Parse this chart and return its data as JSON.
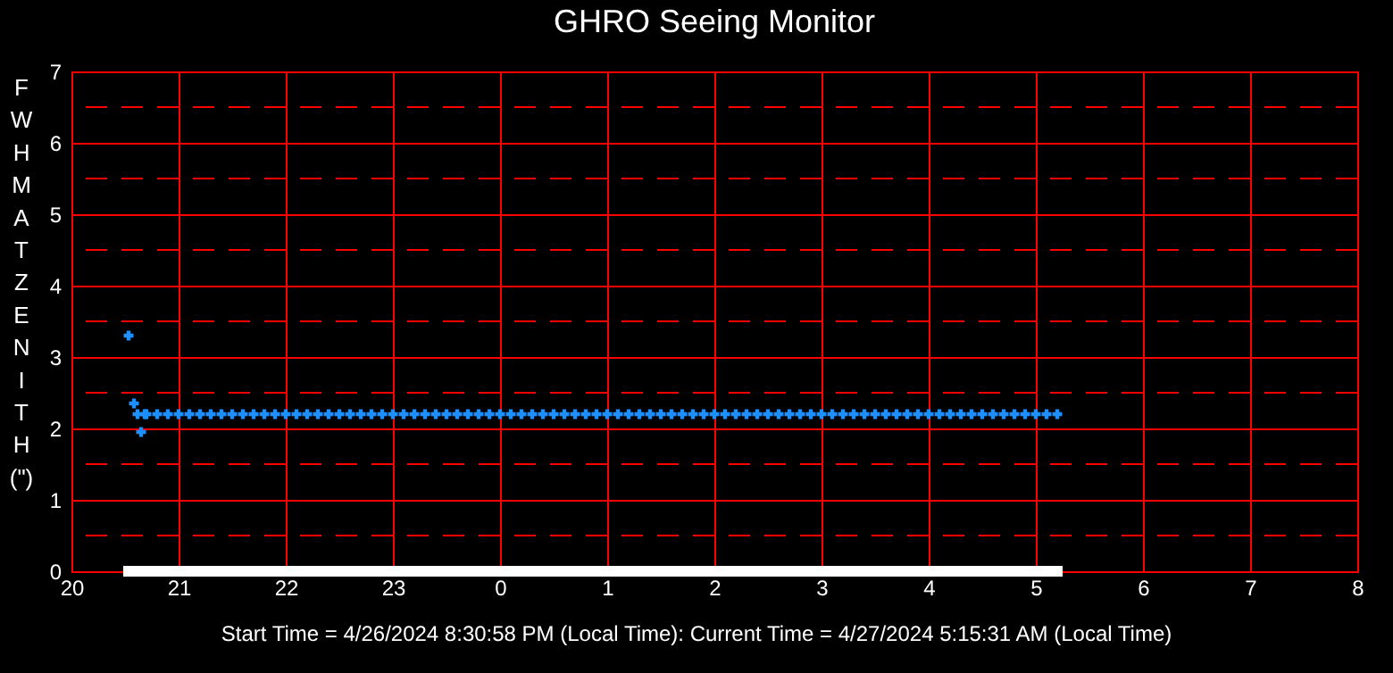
{
  "chart_data": {
    "type": "scatter",
    "title": "GHRO Seeing Monitor",
    "ylabel": "FWHM AT ZENITH (\")",
    "annotations": [
      "Start Time = 4/26/2024 8:30:58 PM (Local Time): Current Time = 4/27/2024 5:15:31 AM (Local Time)"
    ],
    "xlim": [
      "2024-04-26T20:00",
      "2024-04-27T08:00"
    ],
    "xticks": [
      {
        "value": "2024-04-26T20:00",
        "label": "20"
      },
      {
        "value": "2024-04-26T21:00",
        "label": "21"
      },
      {
        "value": "2024-04-26T22:00",
        "label": "22"
      },
      {
        "value": "2024-04-26T23:00",
        "label": "23"
      },
      {
        "value": "2024-04-27T00:00",
        "label": "0"
      },
      {
        "value": "2024-04-27T01:00",
        "label": "1"
      },
      {
        "value": "2024-04-27T02:00",
        "label": "2"
      },
      {
        "value": "2024-04-27T03:00",
        "label": "3"
      },
      {
        "value": "2024-04-27T04:00",
        "label": "4"
      },
      {
        "value": "2024-04-27T05:00",
        "label": "5"
      },
      {
        "value": "2024-04-27T06:00",
        "label": "6"
      },
      {
        "value": "2024-04-27T07:00",
        "label": "7"
      },
      {
        "value": "2024-04-27T08:00",
        "label": "8"
      }
    ],
    "ylim": [
      0,
      7
    ],
    "yticks": [
      0,
      1,
      2,
      3,
      4,
      5,
      6,
      7
    ],
    "grid": true,
    "ref_lines": [
      {
        "axis": "y",
        "value": 0.5,
        "color": "#ff0000",
        "line_style": "dashed"
      },
      {
        "axis": "y",
        "value": 1.5,
        "color": "#ff0000",
        "line_style": "dashed"
      },
      {
        "axis": "y",
        "value": 2.5,
        "color": "#ff0000",
        "line_style": "dashed"
      },
      {
        "axis": "y",
        "value": 3.5,
        "color": "#ff0000",
        "line_style": "dashed"
      },
      {
        "axis": "y",
        "value": 4.5,
        "color": "#ff0000",
        "line_style": "dashed"
      },
      {
        "axis": "y",
        "value": 5.5,
        "color": "#ff0000",
        "line_style": "dashed"
      },
      {
        "axis": "y",
        "value": 6.5,
        "color": "#ff0000",
        "line_style": "dashed"
      }
    ],
    "series": [
      {
        "color": "#1e8fff",
        "marker": "cross",
        "x": [
          "2024-04-26T20:32",
          "2024-04-26T20:35",
          "2024-04-26T20:37",
          "2024-04-26T20:39",
          "2024-04-26T20:41",
          "2024-04-26T20:42",
          "2024-04-26T20:48",
          "2024-04-26T20:54",
          "2024-04-26T21:00",
          "2024-04-26T21:06",
          "2024-04-26T21:12",
          "2024-04-26T21:18",
          "2024-04-26T21:24",
          "2024-04-26T21:30",
          "2024-04-26T21:36",
          "2024-04-26T21:42",
          "2024-04-26T21:48",
          "2024-04-26T21:54",
          "2024-04-26T22:00",
          "2024-04-26T22:06",
          "2024-04-26T22:12",
          "2024-04-26T22:18",
          "2024-04-26T22:24",
          "2024-04-26T22:30",
          "2024-04-26T22:36",
          "2024-04-26T22:42",
          "2024-04-26T22:48",
          "2024-04-26T22:54",
          "2024-04-26T23:00",
          "2024-04-26T23:06",
          "2024-04-26T23:12",
          "2024-04-26T23:18",
          "2024-04-26T23:24",
          "2024-04-26T23:30",
          "2024-04-26T23:36",
          "2024-04-26T23:42",
          "2024-04-26T23:48",
          "2024-04-26T23:54",
          "2024-04-27T00:00",
          "2024-04-27T00:06",
          "2024-04-27T00:12",
          "2024-04-27T00:18",
          "2024-04-27T00:24",
          "2024-04-27T00:30",
          "2024-04-27T00:36",
          "2024-04-27T00:42",
          "2024-04-27T00:48",
          "2024-04-27T00:54",
          "2024-04-27T01:00",
          "2024-04-27T01:06",
          "2024-04-27T01:12",
          "2024-04-27T01:18",
          "2024-04-27T01:24",
          "2024-04-27T01:30",
          "2024-04-27T01:36",
          "2024-04-27T01:42",
          "2024-04-27T01:48",
          "2024-04-27T01:54",
          "2024-04-27T02:00",
          "2024-04-27T02:06",
          "2024-04-27T02:12",
          "2024-04-27T02:18",
          "2024-04-27T02:24",
          "2024-04-27T02:30",
          "2024-04-27T02:36",
          "2024-04-27T02:42",
          "2024-04-27T02:48",
          "2024-04-27T02:54",
          "2024-04-27T03:00",
          "2024-04-27T03:06",
          "2024-04-27T03:12",
          "2024-04-27T03:18",
          "2024-04-27T03:24",
          "2024-04-27T03:30",
          "2024-04-27T03:36",
          "2024-04-27T03:42",
          "2024-04-27T03:48",
          "2024-04-27T03:54",
          "2024-04-27T04:00",
          "2024-04-27T04:06",
          "2024-04-27T04:12",
          "2024-04-27T04:18",
          "2024-04-27T04:24",
          "2024-04-27T04:30",
          "2024-04-27T04:36",
          "2024-04-27T04:42",
          "2024-04-27T04:48",
          "2024-04-27T04:54",
          "2024-04-27T05:00",
          "2024-04-27T05:06",
          "2024-04-27T05:12"
        ],
        "values": [
          3.3,
          2.35,
          2.2,
          1.95,
          2.2,
          2.2,
          2.2,
          2.2,
          2.2,
          2.2,
          2.2,
          2.2,
          2.2,
          2.2,
          2.2,
          2.2,
          2.2,
          2.2,
          2.2,
          2.2,
          2.2,
          2.2,
          2.2,
          2.2,
          2.2,
          2.2,
          2.2,
          2.2,
          2.2,
          2.2,
          2.2,
          2.2,
          2.2,
          2.2,
          2.2,
          2.2,
          2.2,
          2.2,
          2.2,
          2.2,
          2.2,
          2.2,
          2.2,
          2.2,
          2.2,
          2.2,
          2.2,
          2.2,
          2.2,
          2.2,
          2.2,
          2.2,
          2.2,
          2.2,
          2.2,
          2.2,
          2.2,
          2.2,
          2.2,
          2.2,
          2.2,
          2.2,
          2.2,
          2.2,
          2.2,
          2.2,
          2.2,
          2.2,
          2.2,
          2.2,
          2.2,
          2.2,
          2.2,
          2.2,
          2.2,
          2.2,
          2.2,
          2.2,
          2.2,
          2.2,
          2.2,
          2.2,
          2.2,
          2.2,
          2.2,
          2.2,
          2.2,
          2.2,
          2.2,
          2.2,
          2.2
        ]
      },
      {
        "color": "#ffffff",
        "marker": "square",
        "x": [
          "2024-04-26T20:32",
          "2024-04-26T20:36",
          "2024-04-26T20:42",
          "2024-04-26T20:48",
          "2024-04-26T20:54",
          "2024-04-26T21:00",
          "2024-04-26T21:06",
          "2024-04-26T21:12",
          "2024-04-26T21:18",
          "2024-04-26T21:24",
          "2024-04-26T21:30",
          "2024-04-26T21:36",
          "2024-04-26T21:42",
          "2024-04-26T21:48",
          "2024-04-26T21:54",
          "2024-04-26T22:00",
          "2024-04-26T22:06",
          "2024-04-26T22:12",
          "2024-04-26T22:18",
          "2024-04-26T22:24",
          "2024-04-26T22:30",
          "2024-04-26T22:36",
          "2024-04-26T22:42",
          "2024-04-26T22:48",
          "2024-04-26T22:54",
          "2024-04-26T23:00",
          "2024-04-26T23:06",
          "2024-04-26T23:12",
          "2024-04-26T23:18",
          "2024-04-26T23:24",
          "2024-04-26T23:30",
          "2024-04-26T23:36",
          "2024-04-26T23:42",
          "2024-04-26T23:48",
          "2024-04-26T23:54",
          "2024-04-27T00:00",
          "2024-04-27T00:06",
          "2024-04-27T00:12",
          "2024-04-27T00:18",
          "2024-04-27T00:24",
          "2024-04-27T00:30",
          "2024-04-27T00:36",
          "2024-04-27T00:42",
          "2024-04-27T00:48",
          "2024-04-27T00:54",
          "2024-04-27T01:00",
          "2024-04-27T01:06",
          "2024-04-27T01:12",
          "2024-04-27T01:18",
          "2024-04-27T01:24",
          "2024-04-27T01:30",
          "2024-04-27T01:36",
          "2024-04-27T01:42",
          "2024-04-27T01:48",
          "2024-04-27T01:54",
          "2024-04-27T02:00",
          "2024-04-27T02:06",
          "2024-04-27T02:12",
          "2024-04-27T02:18",
          "2024-04-27T02:24",
          "2024-04-27T02:30",
          "2024-04-27T02:36",
          "2024-04-27T02:42",
          "2024-04-27T02:48",
          "2024-04-27T02:54",
          "2024-04-27T03:00",
          "2024-04-27T03:06",
          "2024-04-27T03:12",
          "2024-04-27T03:18",
          "2024-04-27T03:24",
          "2024-04-27T03:30",
          "2024-04-27T03:36",
          "2024-04-27T03:42",
          "2024-04-27T03:48",
          "2024-04-27T03:54",
          "2024-04-27T04:00",
          "2024-04-27T04:06",
          "2024-04-27T04:12",
          "2024-04-27T04:18",
          "2024-04-27T04:24",
          "2024-04-27T04:30",
          "2024-04-27T04:36",
          "2024-04-27T04:42",
          "2024-04-27T04:48",
          "2024-04-27T04:54",
          "2024-04-27T05:00",
          "2024-04-27T05:06",
          "2024-04-27T05:12"
        ],
        "values": [
          0,
          0,
          0,
          0,
          0,
          0,
          0,
          0,
          0,
          0,
          0,
          0,
          0,
          0,
          0,
          0,
          0,
          0,
          0,
          0,
          0,
          0,
          0,
          0,
          0,
          0,
          0,
          0,
          0,
          0,
          0,
          0,
          0,
          0,
          0,
          0,
          0,
          0,
          0,
          0,
          0,
          0,
          0,
          0,
          0,
          0,
          0,
          0,
          0,
          0,
          0,
          0,
          0,
          0,
          0,
          0,
          0,
          0,
          0,
          0,
          0,
          0,
          0,
          0,
          0,
          0,
          0,
          0,
          0,
          0,
          0,
          0,
          0,
          0,
          0,
          0,
          0,
          0,
          0,
          0,
          0,
          0,
          0,
          0,
          0,
          0,
          0,
          0
        ]
      }
    ]
  }
}
